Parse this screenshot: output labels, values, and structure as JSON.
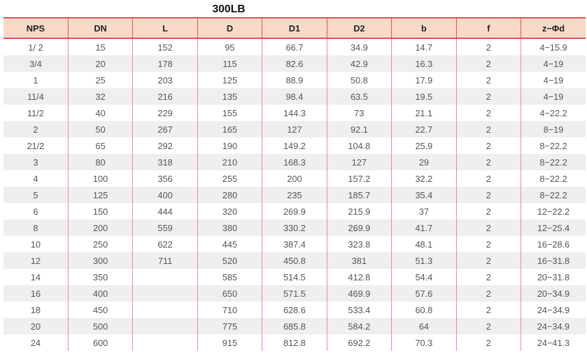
{
  "title": "300LB",
  "columns": [
    "NPS",
    "DN",
    "L",
    "D",
    "D1",
    "D2",
    "b",
    "f",
    "z−Φd"
  ],
  "rows": [
    [
      "1/ 2",
      "15",
      "152",
      "95",
      "66.7",
      "34.9",
      "14.7",
      "2",
      "4−15.9"
    ],
    [
      "3/4",
      "20",
      "178",
      "115",
      "82.6",
      "42.9",
      "16.3",
      "2",
      "4−19"
    ],
    [
      "1",
      "25",
      "203",
      "125",
      "88.9",
      "50.8",
      "17.9",
      "2",
      "4−19"
    ],
    [
      "11/4",
      "32",
      "216",
      "135",
      "98.4",
      "63.5",
      "19.5",
      "2",
      "4−19"
    ],
    [
      "11/2",
      "40",
      "229",
      "155",
      "144.3",
      "73",
      "21.1",
      "2",
      "4−22.2"
    ],
    [
      "2",
      "50",
      "267",
      "165",
      "127",
      "92.1",
      "22.7",
      "2",
      "8−19"
    ],
    [
      "21/2",
      "65",
      "292",
      "190",
      "149.2",
      "104.8",
      "25.9",
      "2",
      "8−22.2"
    ],
    [
      "3",
      "80",
      "318",
      "210",
      "168.3",
      "127",
      "29",
      "2",
      "8−22.2"
    ],
    [
      "4",
      "100",
      "356",
      "255",
      "200",
      "157.2",
      "32.2",
      "2",
      "8−22.2"
    ],
    [
      "5",
      "125",
      "400",
      "280",
      "235",
      "185.7",
      "35.4",
      "2",
      "8−22.2"
    ],
    [
      "6",
      "150",
      "444",
      "320",
      "269.9",
      "215.9",
      "37",
      "2",
      "12−22.2"
    ],
    [
      "8",
      "200",
      "559",
      "380",
      "330.2",
      "269.9",
      "41.7",
      "2",
      "12−25.4"
    ],
    [
      "10",
      "250",
      "622",
      "445",
      "387.4",
      "323.8",
      "48.1",
      "2",
      "16−28.6"
    ],
    [
      "12",
      "300",
      "711",
      "520",
      "450.8",
      "381",
      "51.3",
      "2",
      "16−31.8"
    ],
    [
      "14",
      "350",
      "",
      "585",
      "514.5",
      "412.8",
      "54.4",
      "2",
      "20−31.8"
    ],
    [
      "16",
      "400",
      "",
      "650",
      "571.5",
      "469.9",
      "57.6",
      "2",
      "20−34.9"
    ],
    [
      "18",
      "450",
      "",
      "710",
      "628.6",
      "533.4",
      "60.8",
      "2",
      "24−34.9"
    ],
    [
      "20",
      "500",
      "",
      "775",
      "685.8",
      "584.2",
      "64",
      "2",
      "24−34.9"
    ],
    [
      "24",
      "600",
      "",
      "915",
      "812.8",
      "692.2",
      "70.3",
      "2",
      "24−41.3"
    ]
  ]
}
